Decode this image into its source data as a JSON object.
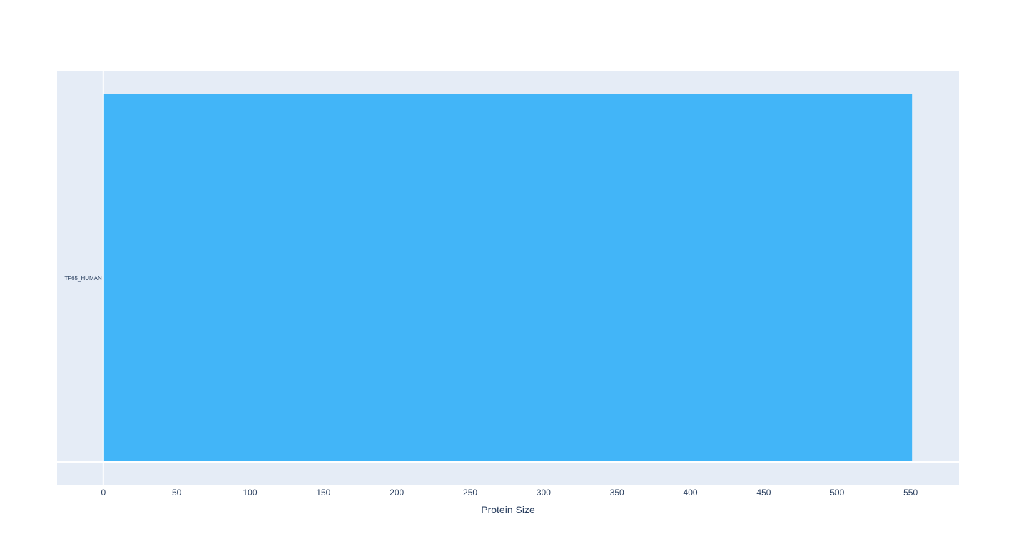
{
  "chart_data": {
    "type": "bar",
    "orientation": "horizontal",
    "categories": [
      "TF65_HUMAN"
    ],
    "values": [
      551
    ],
    "xlabel": "Protein Size",
    "ylabel": "",
    "xlim": [
      -31.5,
      583
    ],
    "xticks": [
      0,
      50,
      100,
      150,
      200,
      250,
      300,
      350,
      400,
      450,
      500,
      550
    ],
    "grid": false,
    "bar_color": "#42b5f8",
    "plot_bg": "#e5ecf6",
    "text_color": "#2a3f5f"
  }
}
